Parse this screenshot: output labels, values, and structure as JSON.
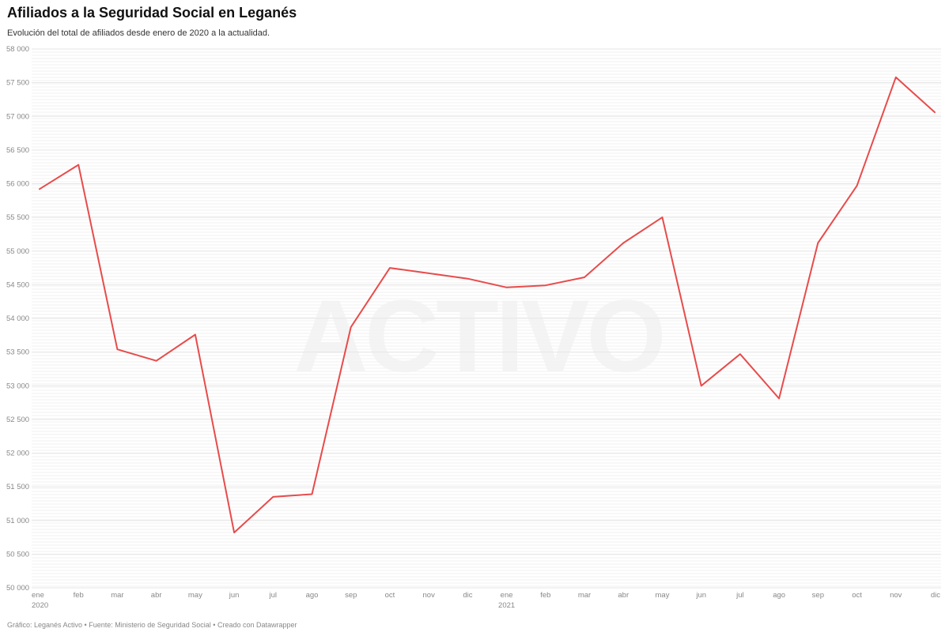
{
  "header": {
    "title": "Afiliados a la Seguridad Social en Leganés",
    "subtitle": "Evolución del total de afiliados desde enero de 2020 a la actualidad."
  },
  "footer": {
    "text": "Gráfico: Leganés Activo • Fuente: Ministerio de Seguridad Social • Creado con Datawrapper"
  },
  "watermark": "ACTIVO",
  "colors": {
    "line": "#e84b4b",
    "grid": "#e6e6e6",
    "axis_text": "#888888"
  },
  "chart_data": {
    "type": "line",
    "title": "Afiliados a la Seguridad Social en Leganés",
    "subtitle": "Evolución del total de afiliados desde enero de 2020 a la actualidad.",
    "xlabel": "",
    "ylabel": "",
    "x": [
      "2020-01",
      "2020-02",
      "2020-03",
      "2020-04",
      "2020-05",
      "2020-06",
      "2020-07",
      "2020-08",
      "2020-09",
      "2020-10",
      "2020-11",
      "2020-12",
      "2021-01",
      "2021-02",
      "2021-03",
      "2021-04",
      "2021-05",
      "2021-06",
      "2021-07",
      "2021-08",
      "2021-09",
      "2021-10",
      "2021-11",
      "2021-12"
    ],
    "x_tick_labels": [
      "ene",
      "feb",
      "mar",
      "abr",
      "may",
      "jun",
      "jul",
      "ago",
      "sep",
      "oct",
      "nov",
      "dic",
      "ene",
      "feb",
      "mar",
      "abr",
      "may",
      "jun",
      "jul",
      "ago",
      "sep",
      "oct",
      "nov",
      "dic"
    ],
    "x_year_labels": [
      {
        "index": 0,
        "label": "2020"
      },
      {
        "index": 12,
        "label": "2021"
      }
    ],
    "series": [
      {
        "values": [
          55920,
          56280,
          53540,
          53370,
          53760,
          50820,
          51350,
          51390,
          53870,
          54750,
          54670,
          54590,
          54460,
          54490,
          54610,
          55120,
          55500,
          53000,
          53470,
          52810,
          55120,
          55970,
          57580,
          57060
        ]
      }
    ],
    "ylim": [
      50000,
      58000
    ],
    "y_ticks": [
      50000,
      50500,
      51000,
      51500,
      52000,
      52500,
      53000,
      53500,
      54000,
      54500,
      55000,
      55500,
      56000,
      56500,
      57000,
      57500,
      58000
    ],
    "y_tick_labels": [
      "50 000",
      "50 500",
      "51 000",
      "51 500",
      "52 000",
      "52 500",
      "53 000",
      "53 500",
      "54 000",
      "54 500",
      "55 000",
      "55 500",
      "56 000",
      "56 500",
      "57 000",
      "57 500",
      "58 000"
    ],
    "grid": true,
    "legend": "none"
  }
}
